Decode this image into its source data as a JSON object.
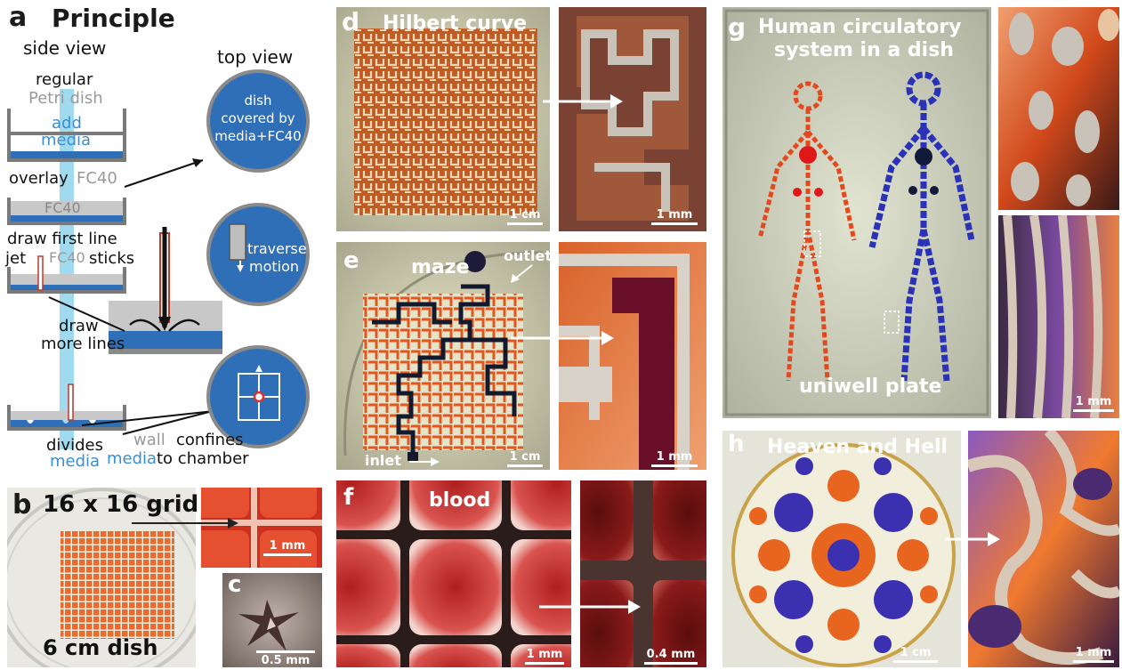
{
  "panel_a": {
    "letter": "a",
    "title": "Principle",
    "side_view": "side view",
    "top_view": "top view",
    "regular": "regular",
    "petri_dish": "Petri dish",
    "add": "add",
    "media": "media",
    "overlay": "overlay",
    "fc40": "FC40",
    "fc40_in_dish": "FC40",
    "draw_first_line": "draw first line",
    "jet": "jet",
    "fc40_sticks_a": "FC40",
    "sticks": "sticks",
    "draw": "draw",
    "more_lines": "more lines",
    "divides": "divides",
    "divides_media": "media",
    "top1": [
      "dish",
      "covered by",
      "media+FC40"
    ],
    "traverse": "traverse",
    "motion": "motion",
    "wall": "wall",
    "confines": "confines",
    "media_to": "media",
    "to_chamber": "to chamber"
  },
  "panel_b": {
    "letter": "b",
    "title": "16 x 16 grid",
    "dish": "6 cm dish",
    "scale": "1 mm"
  },
  "panel_c": {
    "letter": "c",
    "scale": "0.5 mm"
  },
  "panel_d": {
    "letter": "d",
    "title": "Hilbert curve",
    "scale_left": "1 cm",
    "scale_right": "1 mm"
  },
  "panel_e": {
    "letter": "e",
    "title": "maze",
    "outlet": "outlet",
    "inlet": "inlet",
    "scale_left": "1 cm",
    "scale_right": "1 mm"
  },
  "panel_f": {
    "letter": "f",
    "title": "blood",
    "scale_left": "1 mm",
    "scale_right": "0.4 mm"
  },
  "panel_g": {
    "letter": "g",
    "title_line1": "Human circulatory",
    "title_line2": "system in a dish",
    "plate": "uniwell plate",
    "scale": "1 mm"
  },
  "panel_h": {
    "letter": "h",
    "title": "Heaven and Hell",
    "scale_left": "1 cm",
    "scale_right": "1 mm"
  },
  "colors": {
    "media_blue": "#2e6fb8",
    "orange": "#e8662a",
    "dark_red": "#8b1a1a",
    "purple": "#5b2a8a",
    "grey": "#8a8a8a"
  }
}
